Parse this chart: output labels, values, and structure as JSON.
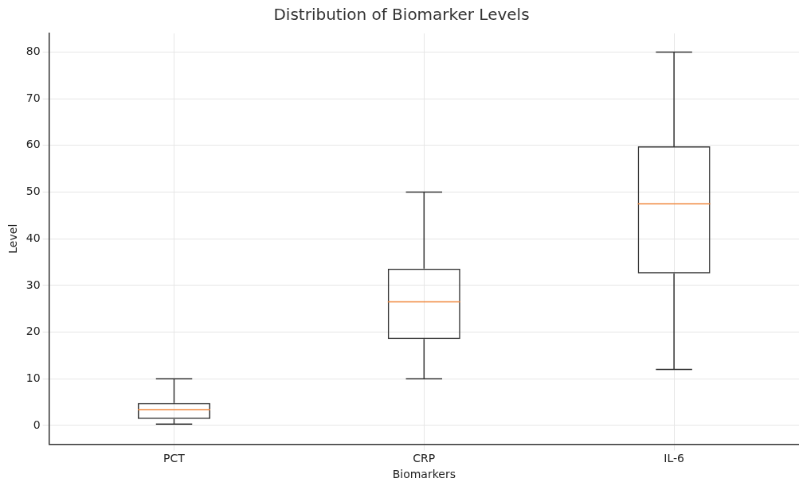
{
  "chart_data": {
    "type": "box",
    "title": "Distribution of Biomarker Levels",
    "xlabel": "Biomarkers",
    "ylabel": "Level",
    "categories": [
      "PCT",
      "CRP",
      "IL-6"
    ],
    "boxes": [
      {
        "low": 0.3,
        "q1": 1.4,
        "median": 3.4,
        "q3": 4.8,
        "high": 10
      },
      {
        "low": 10,
        "q1": 18.5,
        "median": 26.5,
        "q3": 33.6,
        "high": 50
      },
      {
        "low": 12,
        "q1": 32.6,
        "median": 47.5,
        "q3": 59.8,
        "high": 80
      }
    ],
    "color": "#333333",
    "ylim": [
      -4,
      84
    ],
    "yticks": [
      0,
      10,
      20,
      30,
      40,
      50,
      60,
      70,
      80
    ],
    "grid": true,
    "legend": false
  }
}
